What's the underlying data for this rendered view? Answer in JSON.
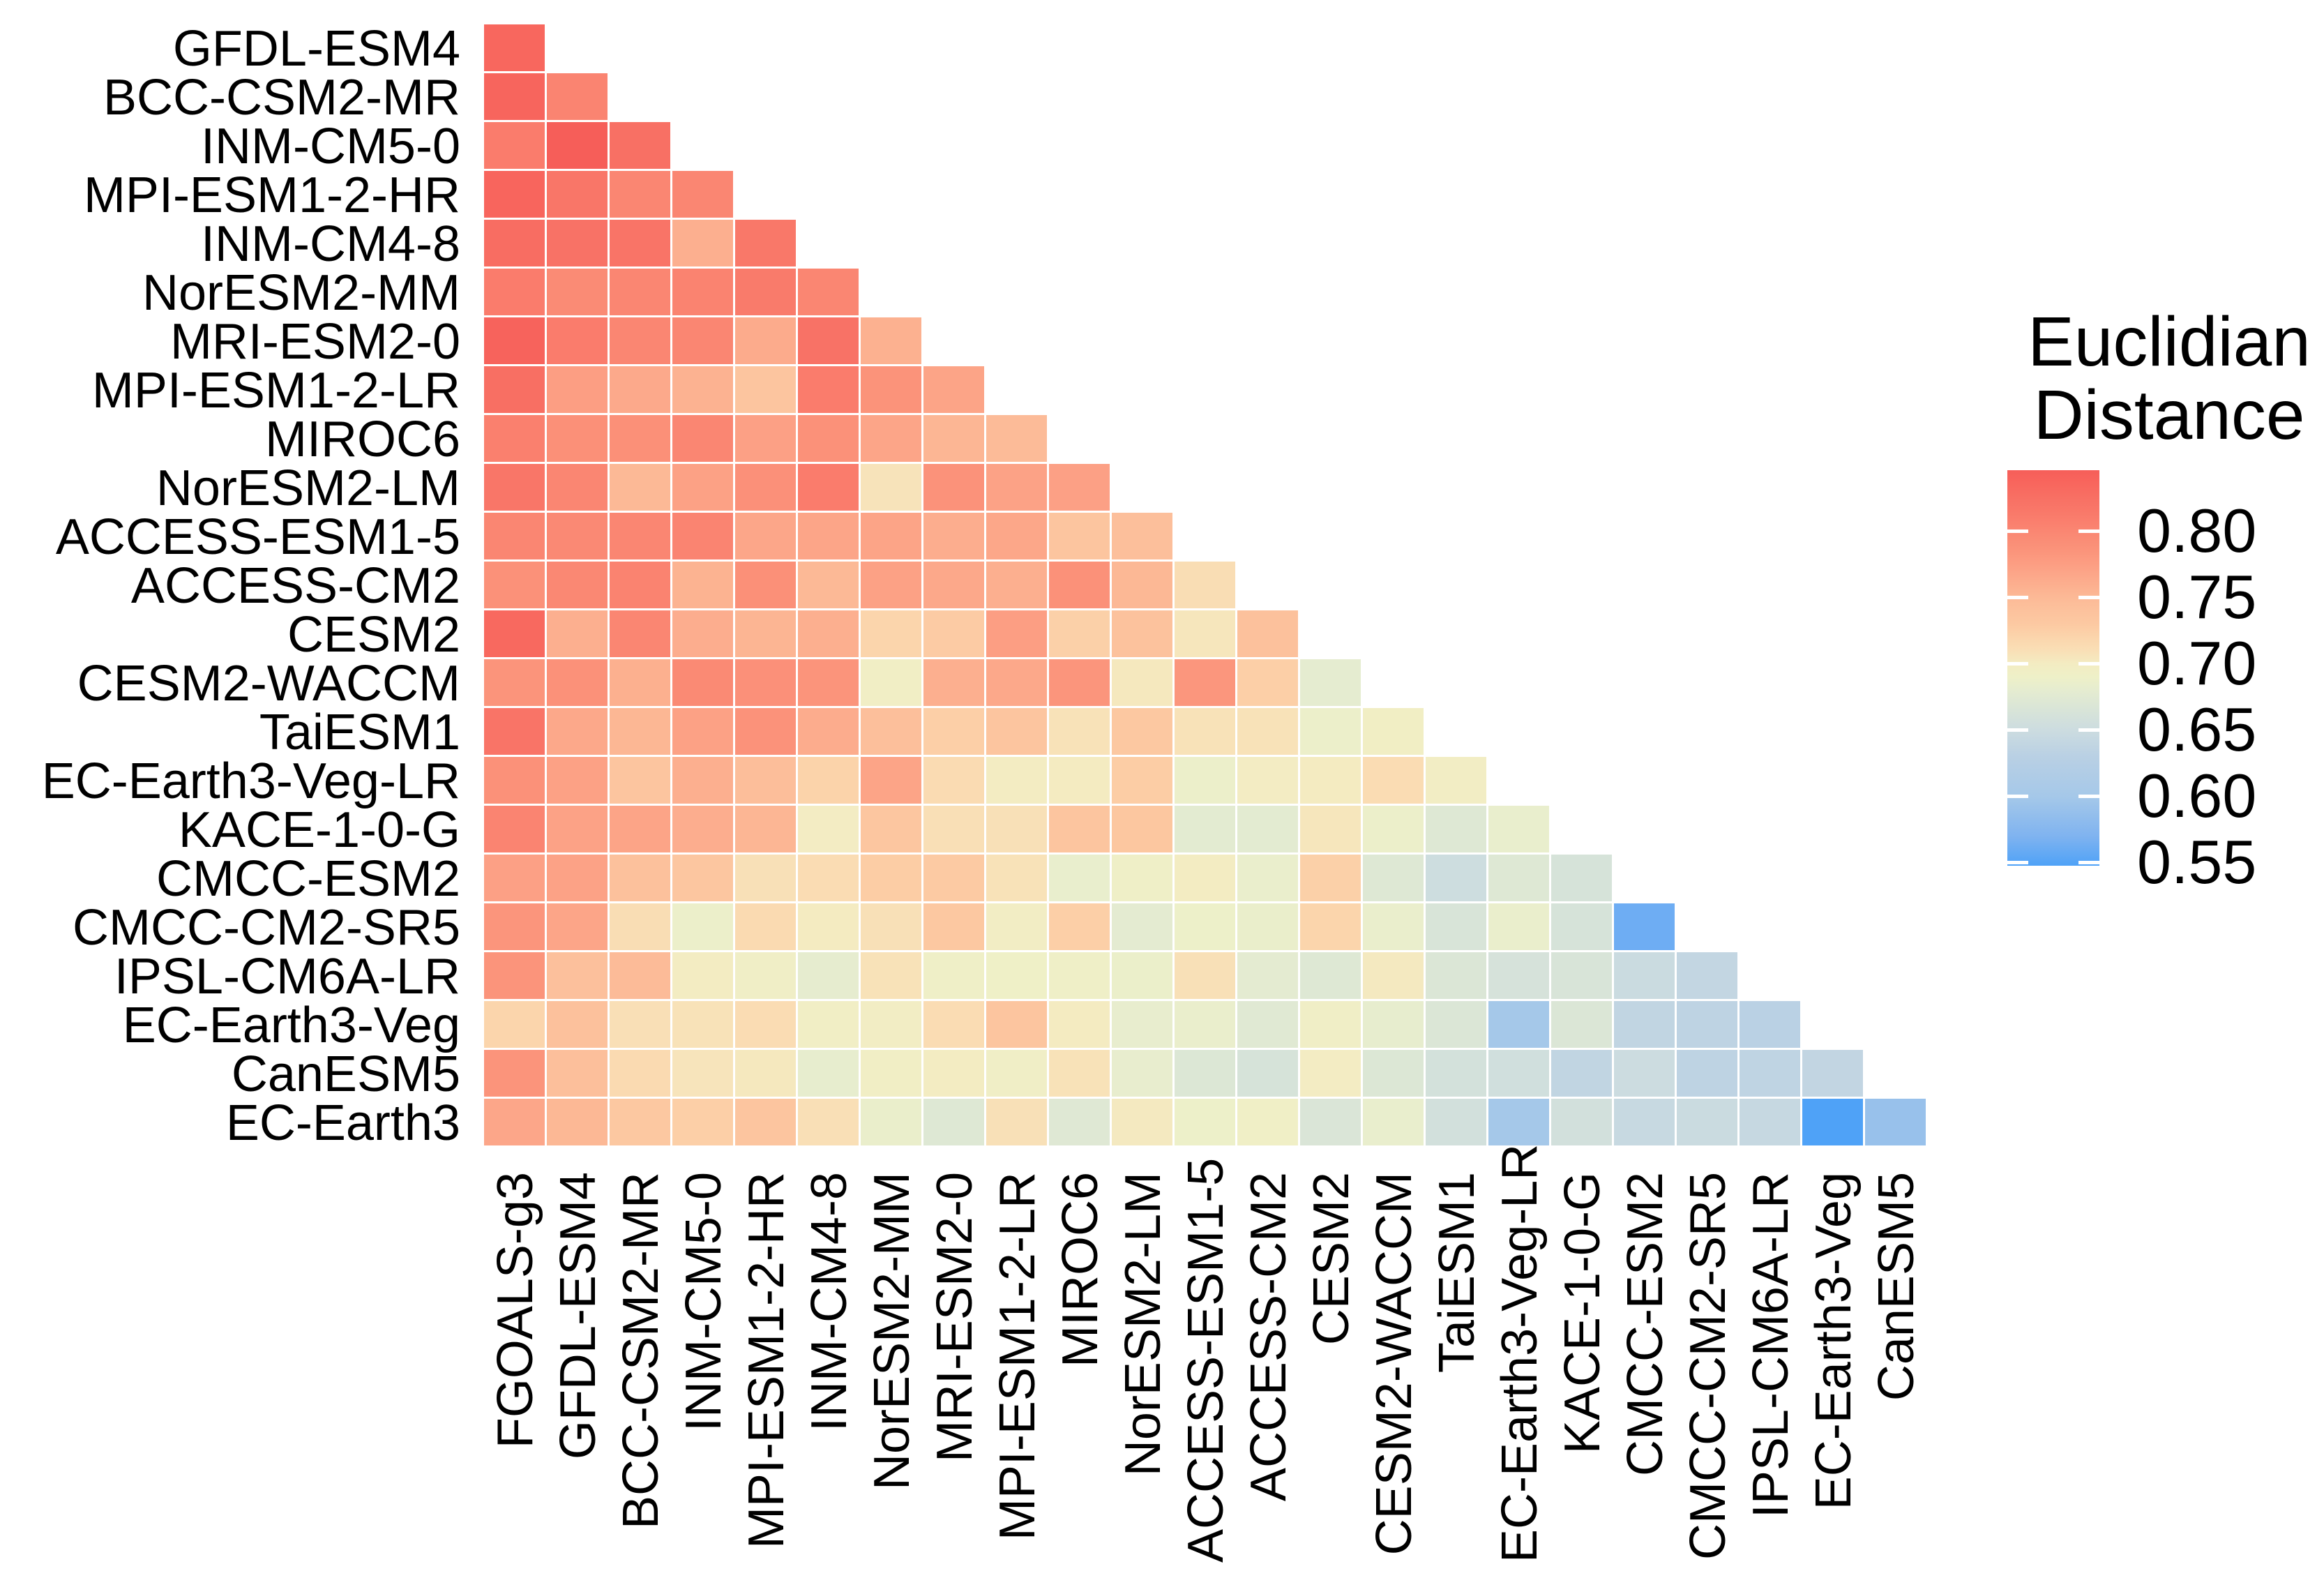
{
  "legend": {
    "title_line1": "Euclidian",
    "title_line2": "Distance",
    "tick_labels": [
      "0.80",
      "0.75",
      "0.70",
      "0.65",
      "0.60",
      "0.55"
    ]
  },
  "chart_data": {
    "type": "heatmap",
    "subtype": "lower-triangle-distance-matrix",
    "legend_title": "Euclidian Distance",
    "grid": "off",
    "legend_position": "right",
    "rows": [
      "GFDL-ESM4",
      "BCC-CSM2-MR",
      "INM-CM5-0",
      "MPI-ESM1-2-HR",
      "INM-CM4-8",
      "NorESM2-MM",
      "MRI-ESM2-0",
      "MPI-ESM1-2-LR",
      "MIROC6",
      "NorESM2-LM",
      "ACCESS-ESM1-5",
      "ACCESS-CM2",
      "CESM2",
      "CESM2-WACCM",
      "TaiESM1",
      "EC-Earth3-Veg-LR",
      "KACE-1-0-G",
      "CMCC-ESM2",
      "CMCC-CM2-SR5",
      "IPSL-CM6A-LR",
      "EC-Earth3-Veg",
      "CanESM5",
      "EC-Earth3"
    ],
    "columns": [
      "FGOALS-g3",
      "GFDL-ESM4",
      "BCC-CSM2-MR",
      "INM-CM5-0",
      "MPI-ESM1-2-HR",
      "INM-CM4-8",
      "NorESM2-MM",
      "MRI-ESM2-0",
      "MPI-ESM1-2-LR",
      "MIROC6",
      "NorESM2-LM",
      "ACCESS-ESM1-5",
      "ACCESS-CM2",
      "CESM2",
      "CESM2-WACCM",
      "TaiESM1",
      "EC-Earth3-Veg-LR",
      "KACE-1-0-G",
      "CMCC-ESM2",
      "CMCC-CM2-SR5",
      "IPSL-CM6A-LR",
      "EC-Earth3-Veg",
      "CanESM5"
    ],
    "values": [
      [
        0.835
      ],
      [
        0.838,
        0.802
      ],
      [
        0.81,
        0.85,
        0.825
      ],
      [
        0.837,
        0.818,
        0.8,
        0.8
      ],
      [
        0.828,
        0.822,
        0.82,
        0.76,
        0.815
      ],
      [
        0.81,
        0.795,
        0.8,
        0.803,
        0.812,
        0.8
      ],
      [
        0.84,
        0.81,
        0.8,
        0.8,
        0.763,
        0.822,
        0.758
      ],
      [
        0.826,
        0.775,
        0.765,
        0.757,
        0.735,
        0.81,
        0.786,
        0.77
      ],
      [
        0.806,
        0.79,
        0.79,
        0.8,
        0.773,
        0.788,
        0.769,
        0.753,
        0.748
      ],
      [
        0.818,
        0.8,
        0.75,
        0.772,
        0.789,
        0.81,
        0.707,
        0.787,
        0.771,
        0.773
      ],
      [
        0.8,
        0.797,
        0.8,
        0.802,
        0.768,
        0.769,
        0.77,
        0.761,
        0.767,
        0.736,
        0.743
      ],
      [
        0.788,
        0.798,
        0.803,
        0.756,
        0.79,
        0.75,
        0.772,
        0.766,
        0.76,
        0.788,
        0.751,
        0.712
      ],
      [
        0.833,
        0.76,
        0.8,
        0.761,
        0.754,
        0.76,
        0.72,
        0.728,
        0.775,
        0.724,
        0.74,
        0.705,
        0.741
      ],
      [
        0.785,
        0.788,
        0.759,
        0.796,
        0.789,
        0.785,
        0.695,
        0.76,
        0.766,
        0.784,
        0.703,
        0.783,
        0.725,
        0.68
      ],
      [
        0.82,
        0.766,
        0.752,
        0.772,
        0.787,
        0.762,
        0.743,
        0.725,
        0.736,
        0.708,
        0.731,
        0.708,
        0.708,
        0.688,
        0.696
      ],
      [
        0.788,
        0.772,
        0.735,
        0.76,
        0.745,
        0.722,
        0.77,
        0.714,
        0.7,
        0.701,
        0.727,
        0.688,
        0.699,
        0.701,
        0.713,
        0.697
      ],
      [
        0.802,
        0.771,
        0.77,
        0.761,
        0.753,
        0.699,
        0.734,
        0.71,
        0.709,
        0.736,
        0.733,
        0.678,
        0.678,
        0.705,
        0.688,
        0.672,
        0.684
      ],
      [
        0.773,
        0.771,
        0.741,
        0.734,
        0.709,
        0.713,
        0.727,
        0.729,
        0.708,
        0.684,
        0.692,
        0.7,
        0.685,
        0.724,
        0.672,
        0.651,
        0.672,
        0.663
      ],
      [
        0.784,
        0.769,
        0.712,
        0.688,
        0.715,
        0.701,
        0.709,
        0.731,
        0.697,
        0.725,
        0.679,
        0.689,
        0.686,
        0.72,
        0.685,
        0.665,
        0.685,
        0.663,
        0.562
      ],
      [
        0.785,
        0.742,
        0.748,
        0.7,
        0.694,
        0.681,
        0.708,
        0.692,
        0.691,
        0.692,
        0.687,
        0.709,
        0.679,
        0.672,
        0.702,
        0.668,
        0.662,
        0.665,
        0.648,
        0.64
      ],
      [
        0.72,
        0.741,
        0.71,
        0.708,
        0.713,
        0.695,
        0.697,
        0.713,
        0.736,
        0.701,
        0.683,
        0.685,
        0.674,
        0.694,
        0.682,
        0.669,
        0.6,
        0.668,
        0.638,
        0.635,
        0.631
      ],
      [
        0.785,
        0.744,
        0.715,
        0.706,
        0.703,
        0.682,
        0.695,
        0.7,
        0.694,
        0.708,
        0.683,
        0.67,
        0.663,
        0.699,
        0.67,
        0.659,
        0.655,
        0.638,
        0.65,
        0.635,
        0.636,
        0.639
      ],
      [
        0.768,
        0.751,
        0.731,
        0.725,
        0.735,
        0.71,
        0.686,
        0.672,
        0.709,
        0.673,
        0.702,
        0.689,
        0.693,
        0.667,
        0.684,
        0.658,
        0.6,
        0.658,
        0.645,
        0.648,
        0.644,
        0.548,
        0.59
      ]
    ],
    "value_range": [
      0.548,
      0.846
    ],
    "legend_ticks": [
      0.8,
      0.75,
      0.7,
      0.65,
      0.6,
      0.55
    ],
    "colormap": [
      [
        0.548,
        "#4FA2F7"
      ],
      [
        0.57,
        "#7FB3F0"
      ],
      [
        0.6,
        "#A5C8E9"
      ],
      [
        0.63,
        "#B9D0E4"
      ],
      [
        0.65,
        "#CCDCE0"
      ],
      [
        0.665,
        "#D8E4D8"
      ],
      [
        0.68,
        "#E5ECD0"
      ],
      [
        0.69,
        "#EEF0C8"
      ],
      [
        0.7,
        "#F3ECC2"
      ],
      [
        0.71,
        "#F9DFB6"
      ],
      [
        0.72,
        "#FBD5AC"
      ],
      [
        0.73,
        "#FCC9A2"
      ],
      [
        0.745,
        "#FCBE9A"
      ],
      [
        0.755,
        "#FCB492"
      ],
      [
        0.765,
        "#FCA98B"
      ],
      [
        0.775,
        "#FC9E83"
      ],
      [
        0.785,
        "#FB947B"
      ],
      [
        0.795,
        "#FA8B75"
      ],
      [
        0.805,
        "#FA816F"
      ],
      [
        0.815,
        "#F97869"
      ],
      [
        0.825,
        "#F87064"
      ],
      [
        0.835,
        "#F8675E"
      ],
      [
        0.846,
        "#F65E59"
      ]
    ]
  }
}
